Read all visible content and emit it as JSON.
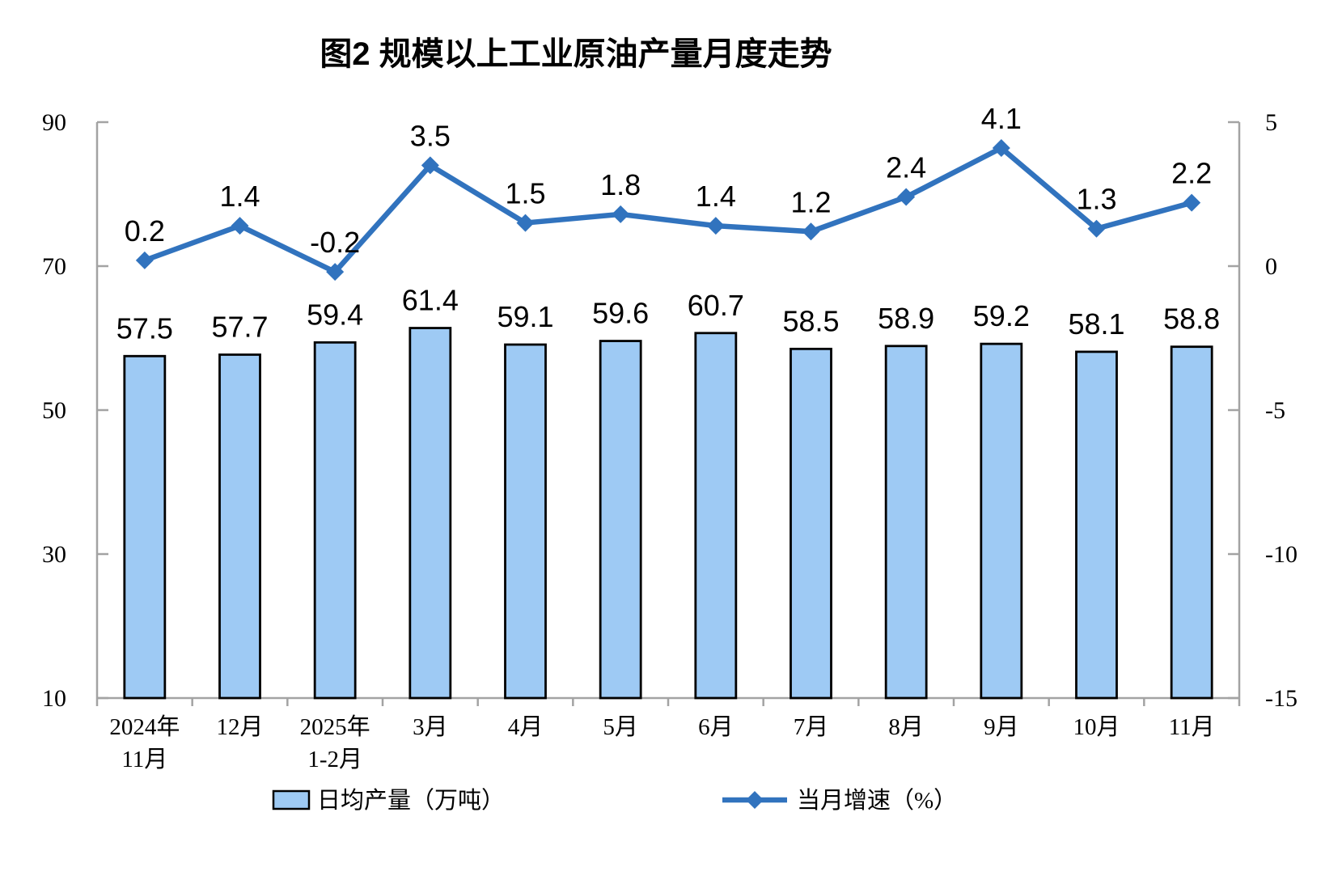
{
  "title": "图2 规模以上工业原油产量月度走势",
  "legend": {
    "bar_label": "日均产量（万吨）",
    "line_label": "当月增速（%）"
  },
  "colors": {
    "bar_fill": "#9ECAF4",
    "bar_border": "#000000",
    "line": "#3173BE",
    "axis": "#A3A3A3",
    "text": "#000000"
  },
  "chart_data": {
    "type": "combo",
    "title": "图2 规模以上工业原油产量月度走势",
    "categories": [
      [
        "2024年",
        "11月"
      ],
      [
        "12月"
      ],
      [
        "2025年",
        "1-2月"
      ],
      [
        "3月"
      ],
      [
        "4月"
      ],
      [
        "5月"
      ],
      [
        "6月"
      ],
      [
        "7月"
      ],
      [
        "8月"
      ],
      [
        "9月"
      ],
      [
        "10月"
      ],
      [
        "11月"
      ]
    ],
    "series": [
      {
        "name": "日均产量（万吨）",
        "type": "bar",
        "axis": "left",
        "values": [
          57.5,
          57.7,
          59.4,
          61.4,
          59.1,
          59.6,
          60.7,
          58.5,
          58.9,
          59.2,
          58.1,
          58.8
        ]
      },
      {
        "name": "当月增速（%）",
        "type": "line",
        "axis": "right",
        "values": [
          0.2,
          1.4,
          -0.2,
          3.5,
          1.5,
          1.8,
          1.4,
          1.2,
          2.4,
          4.1,
          1.3,
          2.2
        ]
      }
    ],
    "left_axis": {
      "min": 10,
      "max": 90,
      "ticks": [
        10,
        30,
        50,
        70,
        90
      ]
    },
    "right_axis": {
      "min": -15,
      "max": 5,
      "ticks": [
        -15,
        -10,
        -5,
        0,
        5
      ]
    },
    "grid": false,
    "legend_position": "bottom",
    "data_labels": true
  }
}
